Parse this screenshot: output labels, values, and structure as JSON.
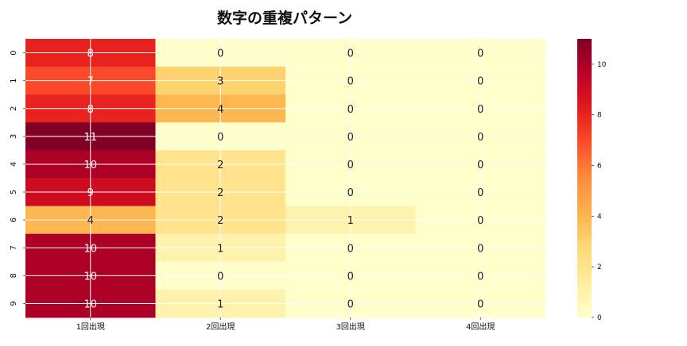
{
  "chart_data": {
    "type": "heatmap",
    "title": "数字の重複パターン",
    "xlabel": "",
    "ylabel": "",
    "x_categories": [
      "1回出現",
      "2回出現",
      "3回出現",
      "4回出現"
    ],
    "y_categories": [
      "0",
      "1",
      "2",
      "3",
      "4",
      "5",
      "6",
      "7",
      "8",
      "9"
    ],
    "values": [
      [
        8,
        0,
        0,
        0
      ],
      [
        7,
        3,
        0,
        0
      ],
      [
        8,
        4,
        0,
        0
      ],
      [
        11,
        0,
        0,
        0
      ],
      [
        10,
        2,
        0,
        0
      ],
      [
        9,
        2,
        0,
        0
      ],
      [
        4,
        2,
        1,
        0
      ],
      [
        10,
        1,
        0,
        0
      ],
      [
        10,
        0,
        0,
        0
      ],
      [
        10,
        1,
        0,
        0
      ]
    ],
    "colormap": "YlOrRd",
    "vmin": 0,
    "vmax": 11,
    "colorbar_ticks": [
      "0",
      "2",
      "4",
      "6",
      "8",
      "10"
    ],
    "grid": true,
    "annotated": true
  }
}
